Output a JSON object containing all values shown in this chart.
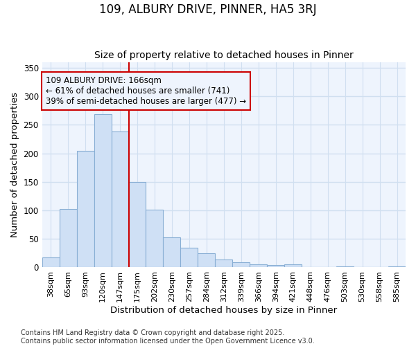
{
  "title": "109, ALBURY DRIVE, PINNER, HA5 3RJ",
  "subtitle": "Size of property relative to detached houses in Pinner",
  "xlabel": "Distribution of detached houses by size in Pinner",
  "ylabel": "Number of detached properties",
  "categories": [
    "38sqm",
    "65sqm",
    "93sqm",
    "120sqm",
    "147sqm",
    "175sqm",
    "202sqm",
    "230sqm",
    "257sqm",
    "284sqm",
    "312sqm",
    "339sqm",
    "366sqm",
    "394sqm",
    "421sqm",
    "448sqm",
    "476sqm",
    "503sqm",
    "530sqm",
    "558sqm",
    "585sqm"
  ],
  "values": [
    18,
    102,
    204,
    268,
    238,
    150,
    101,
    53,
    35,
    25,
    14,
    9,
    5,
    4,
    5,
    1,
    0,
    2,
    0,
    1,
    2
  ],
  "bar_color": "#cfe0f5",
  "bar_edge_color": "#88aed4",
  "ylim": [
    0,
    360
  ],
  "yticks": [
    0,
    50,
    100,
    150,
    200,
    250,
    300,
    350
  ],
  "vline_x": 5.0,
  "vline_color": "#cc0000",
  "annotation_text": "109 ALBURY DRIVE: 166sqm\n← 61% of detached houses are smaller (741)\n39% of semi-detached houses are larger (477) →",
  "footer_text": "Contains HM Land Registry data © Crown copyright and database right 2025.\nContains public sector information licensed under the Open Government Licence v3.0.",
  "bg_color": "#ffffff",
  "plot_bg_color": "#eef4fd",
  "grid_color": "#d0dff0",
  "title_fontsize": 12,
  "subtitle_fontsize": 10,
  "tick_fontsize": 8,
  "label_fontsize": 9.5,
  "footer_fontsize": 7
}
